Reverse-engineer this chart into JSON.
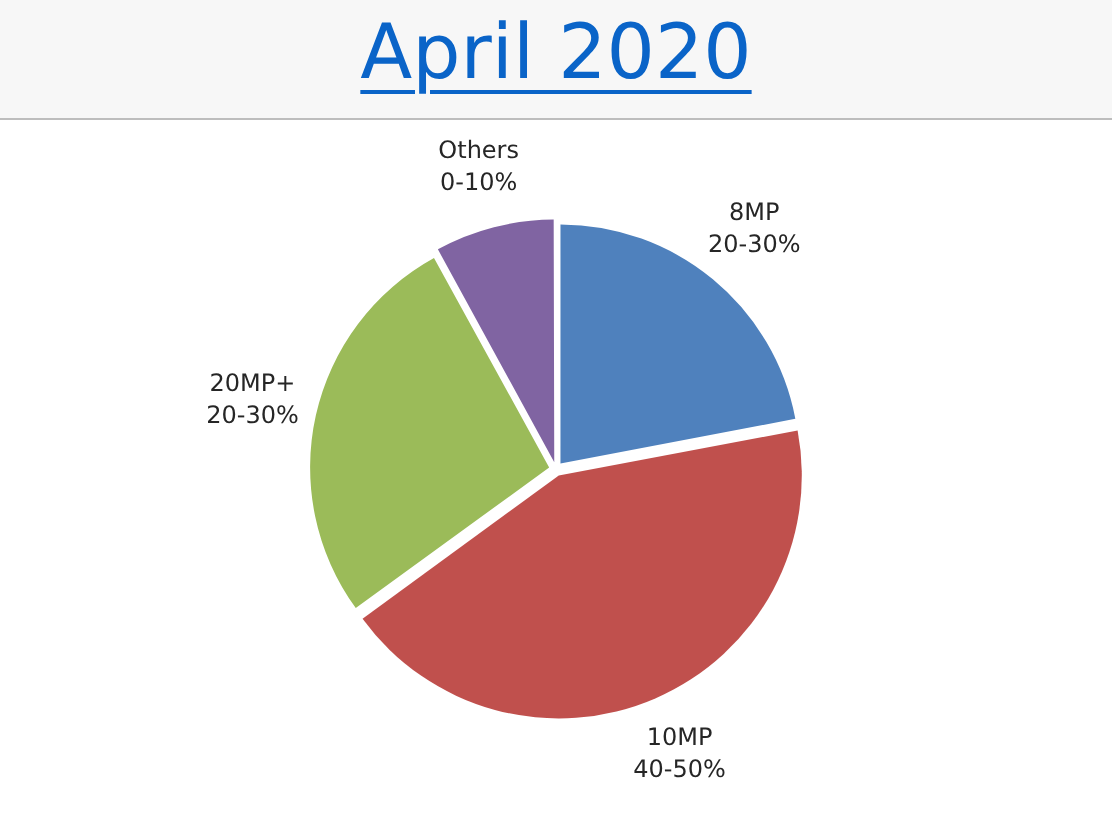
{
  "chart_data": {
    "type": "pie",
    "title": "April 2020",
    "categories": [
      "8MP\n20-30%",
      "10MP\n40-50%",
      "20MP+\n20-30%",
      "Others\n0-10%"
    ],
    "values": [
      22,
      43,
      27,
      8
    ],
    "colors": [
      "#4f81bd",
      "#c0504d",
      "#9bbb59",
      "#8064a2"
    ]
  }
}
